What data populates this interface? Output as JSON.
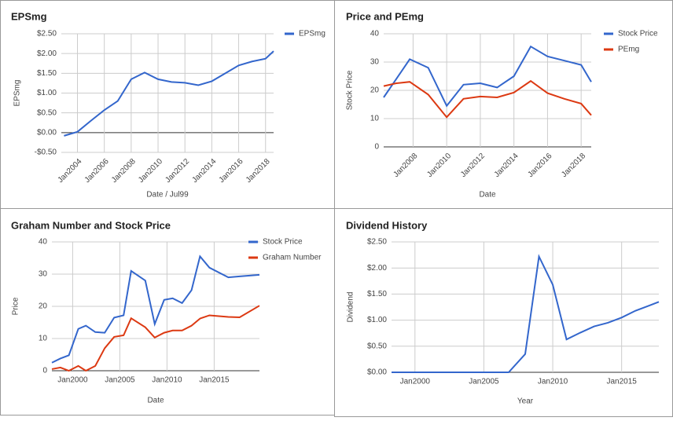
{
  "chart_data": [
    {
      "type": "line",
      "title": "EPSmg",
      "x_label": "Date / Jul99",
      "y_label": "EPSmg",
      "x": [
        2003,
        2004,
        2005,
        2006,
        2007,
        2008,
        2009,
        2010,
        2011,
        2012,
        2013,
        2014,
        2015,
        2016,
        2017,
        2018,
        2018.6
      ],
      "series": [
        {
          "name": "EPSmg",
          "color": "#3366cc",
          "values": [
            -0.08,
            0.02,
            0.3,
            0.57,
            0.8,
            1.35,
            1.52,
            1.35,
            1.28,
            1.26,
            1.2,
            1.3,
            1.5,
            1.7,
            1.8,
            1.87,
            2.06
          ]
        }
      ],
      "xlim": [
        2002.8,
        2018.6
      ],
      "xticks": [
        {
          "value": 2004,
          "label": "Jan2004"
        },
        {
          "value": 2006,
          "label": "Jan2006"
        },
        {
          "value": 2008,
          "label": "Jan2008"
        },
        {
          "value": 2010,
          "label": "Jan2010"
        },
        {
          "value": 2012,
          "label": "Jan2012"
        },
        {
          "value": 2014,
          "label": "Jan2014"
        },
        {
          "value": 2016,
          "label": "Jan2016"
        },
        {
          "value": 2018,
          "label": "Jan2018"
        }
      ],
      "ylim": [
        -0.5,
        2.5
      ],
      "yticks": [
        {
          "value": -0.5,
          "label": "-$0.50"
        },
        {
          "value": 0,
          "label": "$0.00"
        },
        {
          "value": 0.5,
          "label": "$0.50"
        },
        {
          "value": 1,
          "label": "$1.00"
        },
        {
          "value": 1.5,
          "label": "$1.50"
        },
        {
          "value": 2,
          "label": "$2.00"
        },
        {
          "value": 2.5,
          "label": "$2.50"
        }
      ],
      "grid": true,
      "legend": "right"
    },
    {
      "type": "line",
      "title": "Price and PEmg",
      "x_label": "Date",
      "y_label": "Stock Price",
      "x": [
        2006.25,
        2007,
        2007.8,
        2008.9,
        2010,
        2011,
        2012,
        2013,
        2014,
        2015,
        2016,
        2017,
        2018,
        2018.6
      ],
      "series": [
        {
          "name": "Stock Price",
          "color": "#3366cc",
          "values": [
            17.5,
            24,
            31,
            28,
            14.5,
            22,
            22.5,
            21,
            25,
            35.5,
            32,
            30.5,
            29,
            23
          ]
        },
        {
          "name": "PEmg",
          "color": "#dc3912",
          "values": [
            21.5,
            22.5,
            23,
            18.5,
            10.5,
            17,
            17.8,
            17.5,
            19.2,
            23.3,
            19,
            17,
            15.3,
            11.2
          ]
        }
      ],
      "xlim": [
        2006.25,
        2018.6
      ],
      "xticks": [
        {
          "value": 2008,
          "label": "Jan2008"
        },
        {
          "value": 2010,
          "label": "Jan2010"
        },
        {
          "value": 2012,
          "label": "Jan2012"
        },
        {
          "value": 2014,
          "label": "Jan2014"
        },
        {
          "value": 2016,
          "label": "Jan2016"
        },
        {
          "value": 2018,
          "label": "Jan2018"
        }
      ],
      "ylim": [
        0,
        40
      ],
      "yticks": [
        0,
        10,
        20,
        30,
        40
      ],
      "grid": true,
      "legend": "right"
    },
    {
      "type": "line",
      "title": "Graham Number and Stock Price",
      "x_label": "Date",
      "y_label": "Price",
      "x": [
        1997.8,
        1998.7,
        1999.6,
        2000.6,
        2001.4,
        2002.4,
        2003.4,
        2004.4,
        2005.4,
        2006.2,
        2007.7,
        2008.7,
        2009.7,
        2010.6,
        2011.6,
        2012.6,
        2013.5,
        2014.5,
        2016.5,
        2017.7,
        2019.8
      ],
      "series": [
        {
          "name": "Stock Price",
          "color": "#3366cc",
          "values": [
            2.5,
            3.8,
            4.8,
            13,
            14,
            12,
            11.8,
            16.5,
            17.2,
            31,
            28,
            14.5,
            22,
            22.5,
            21,
            25,
            35.5,
            32,
            29,
            29.3,
            29.8
          ]
        },
        {
          "name": "Graham Number",
          "color": "#dc3912",
          "values": [
            0.5,
            1,
            0,
            1.5,
            0,
            1.5,
            7,
            10.5,
            11,
            16.3,
            13.5,
            10.3,
            11.8,
            12.5,
            12.5,
            14,
            16.2,
            17.2,
            16.7,
            16.6,
            20.2
          ]
        }
      ],
      "xlim": [
        1997.8,
        2019.8
      ],
      "xticks": [
        {
          "value": 2000,
          "label": "Jan2000"
        },
        {
          "value": 2005,
          "label": "Jan2005"
        },
        {
          "value": 2010,
          "label": "Jan2010"
        },
        {
          "value": 2015,
          "label": "Jan2015"
        }
      ],
      "ylim": [
        0,
        40
      ],
      "yticks": [
        0,
        10,
        20,
        30,
        40
      ],
      "grid": true,
      "legend": "right"
    },
    {
      "type": "line",
      "title": "Dividend History",
      "x_label": "Year",
      "y_label": "Dividend",
      "x": [
        1998.3,
        2000,
        2002,
        2004,
        2006,
        2006.8,
        2008,
        2009,
        2010,
        2011,
        2012,
        2013,
        2014,
        2015,
        2016,
        2017,
        2017.7
      ],
      "values": [
        0,
        0,
        0,
        0,
        0,
        0,
        0.35,
        2.22,
        1.68,
        0.63,
        0.76,
        0.88,
        0.95,
        1.05,
        1.18,
        1.28,
        1.35
      ],
      "color": "#3366cc",
      "xlim": [
        1998.3,
        2017.7
      ],
      "xticks": [
        {
          "value": 2000,
          "label": "Jan2000"
        },
        {
          "value": 2005,
          "label": "Jan2005"
        },
        {
          "value": 2010,
          "label": "Jan2010"
        },
        {
          "value": 2015,
          "label": "Jan2015"
        }
      ],
      "ylim": [
        0,
        2.5
      ],
      "yticks": [
        {
          "value": 0,
          "label": "$0.00"
        },
        {
          "value": 0.5,
          "label": "$0.50"
        },
        {
          "value": 1,
          "label": "$1.00"
        },
        {
          "value": 1.5,
          "label": "$1.50"
        },
        {
          "value": 2,
          "label": "$2.00"
        },
        {
          "value": 2.5,
          "label": "$2.50"
        }
      ],
      "grid": true
    }
  ]
}
